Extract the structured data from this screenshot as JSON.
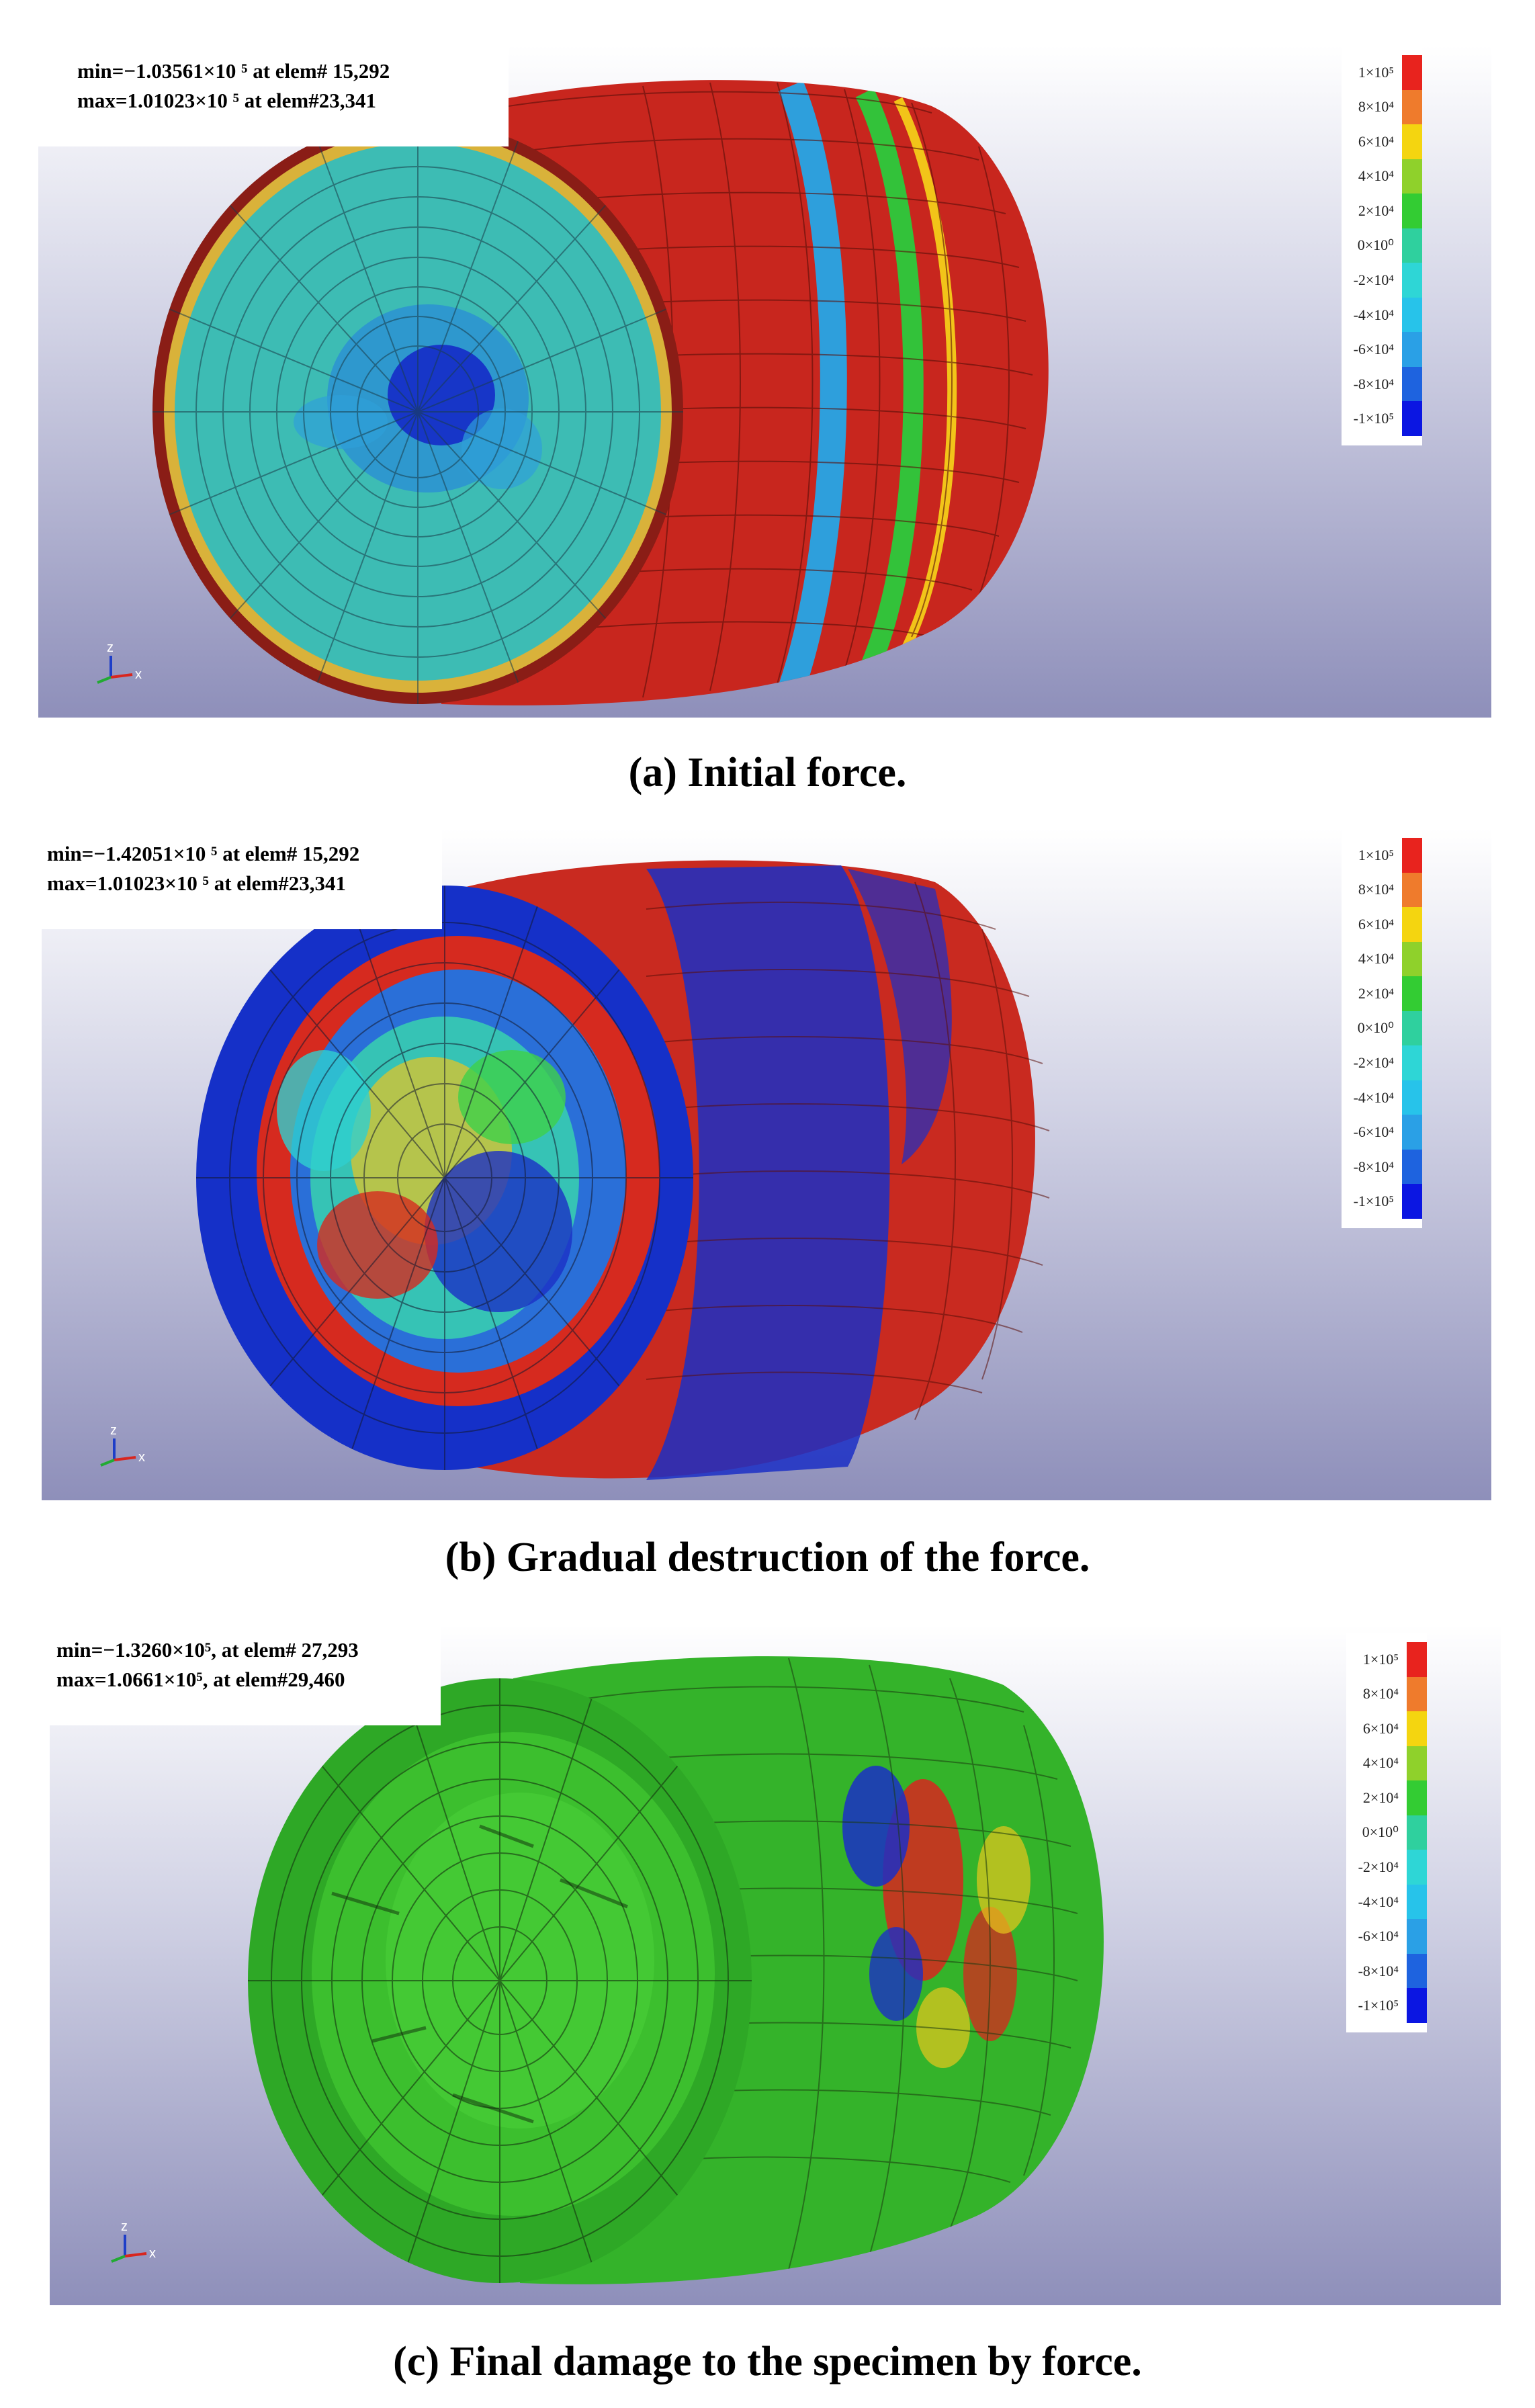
{
  "panels": [
    {
      "min_text": "min=−1.03561×10 ⁵  at elem# 15,292",
      "max_text": "max=1.01023×10 ⁵  at elem#23,341",
      "caption": "(a) Initial force."
    },
    {
      "min_text": "min=−1.42051×10 ⁵  at elem# 15,292",
      "max_text": "max=1.01023×10 ⁵  at elem#23,341",
      "caption": "(b) Gradual destruction of the force."
    },
    {
      "min_text": "min=−1.3260×10⁵,  at elem# 27,293",
      "max_text": "max=1.0661×10⁵,  at elem#29,460",
      "caption": "(c) Final damage to the specimen by force."
    }
  ],
  "legend": {
    "labels": [
      "1×10⁵",
      "8×10⁴",
      "6×10⁴",
      "4×10⁴",
      "2×10⁴",
      "0×10⁰",
      "-2×10⁴",
      "-4×10⁴",
      "-6×10⁴",
      "-8×10⁴",
      "-1×10⁵"
    ],
    "colors": [
      "#e8231e",
      "#ef7b2c",
      "#f4d510",
      "#8fd12b",
      "#33cc33",
      "#2fd09e",
      "#2ed6d6",
      "#27c3ea",
      "#2aa0e6",
      "#1e63df",
      "#0b16e2"
    ]
  },
  "axis_triad": {
    "z": "z",
    "x": "x"
  }
}
